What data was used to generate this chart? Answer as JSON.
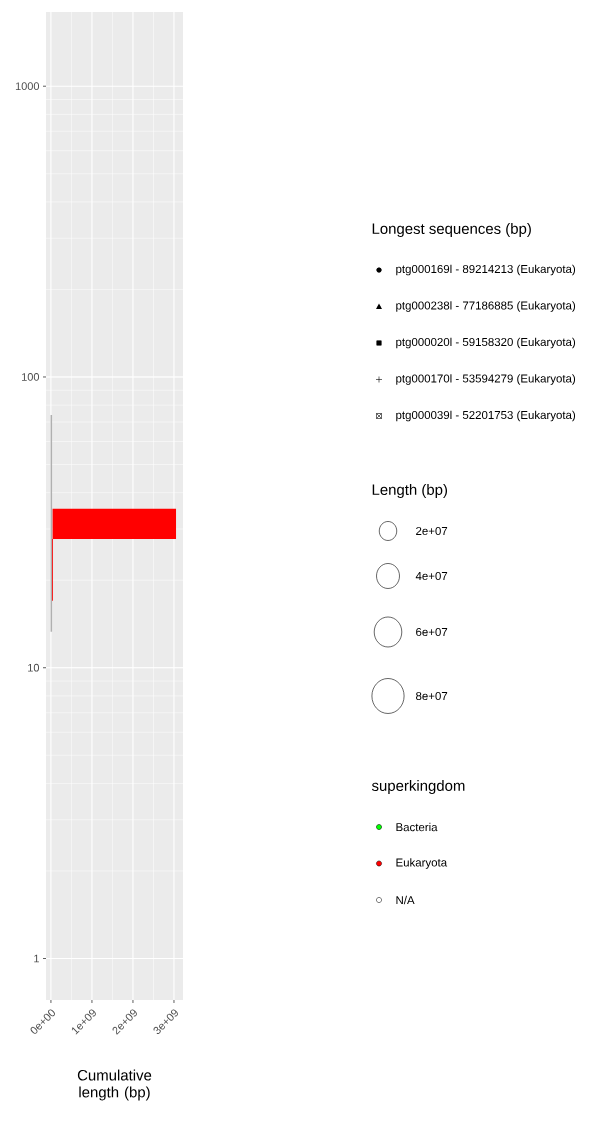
{
  "chart_data": {
    "type": "line",
    "xlabel": "Cumulative length (bp)",
    "legend_title": "Longest sequences (bp)",
    "xlim": [
      -120000000,
      3220000000
    ],
    "xticks": [
      {
        "value": 0,
        "label": "0e+00"
      },
      {
        "value": 1000000000,
        "label": "1e+09"
      },
      {
        "value": 2000000000,
        "label": "2e+09"
      },
      {
        "value": 3000000000,
        "label": "3e+09"
      }
    ],
    "ylim": [
      0.72,
      1800
    ],
    "yticks": [
      1,
      10,
      100,
      1000
    ],
    "log": "y",
    "grid": true,
    "legend": "right",
    "annotations": [
      "Length (bp)",
      "2e+07",
      "4e+07",
      "6e+07",
      "8e+07",
      "superkingdom"
    ],
    "series": [
      {
        "name": "ptg000169l - 89214213 (Eukaryota)",
        "type": "scatter",
        "marker": "circle",
        "color": "#000000"
      },
      {
        "name": "ptg000238l - 77186885 (Eukaryota)",
        "type": "scatter",
        "marker": "triangle",
        "color": "#000000"
      },
      {
        "name": "ptg000020l - 59158320 (Eukaryota)",
        "type": "scatter",
        "marker": "square",
        "color": "#000000"
      },
      {
        "name": "ptg000170l - 53594279 (Eukaryota)",
        "type": "scatter",
        "marker": "cross",
        "color": "#000000"
      },
      {
        "name": "ptg000039l - 52201753 (Eukaryota)",
        "type": "scatter",
        "marker": "boxed cross",
        "color": "#000000"
      },
      {
        "name": "Bacteria",
        "color": "#00ff00"
      },
      {
        "name": "Eukaryota",
        "color": "#ff0000",
        "x": [
          40000000,
          3050000000
        ],
        "values": [
          null,
          null
        ],
        "lower": [
          27.7,
          27.7
        ],
        "upper": [
          35.2,
          35.2
        ]
      },
      {
        "color": "#ff0000",
        "x": [
          30000000,
          30000000
        ],
        "values": [
          17,
          27.7
        ]
      },
      {
        "color": "#b0b0b0",
        "x": [
          10000000,
          10000000
        ],
        "values": [
          13.3,
          74
        ]
      },
      {
        "name": "N/A",
        "color": "#ffffff"
      }
    ]
  }
}
